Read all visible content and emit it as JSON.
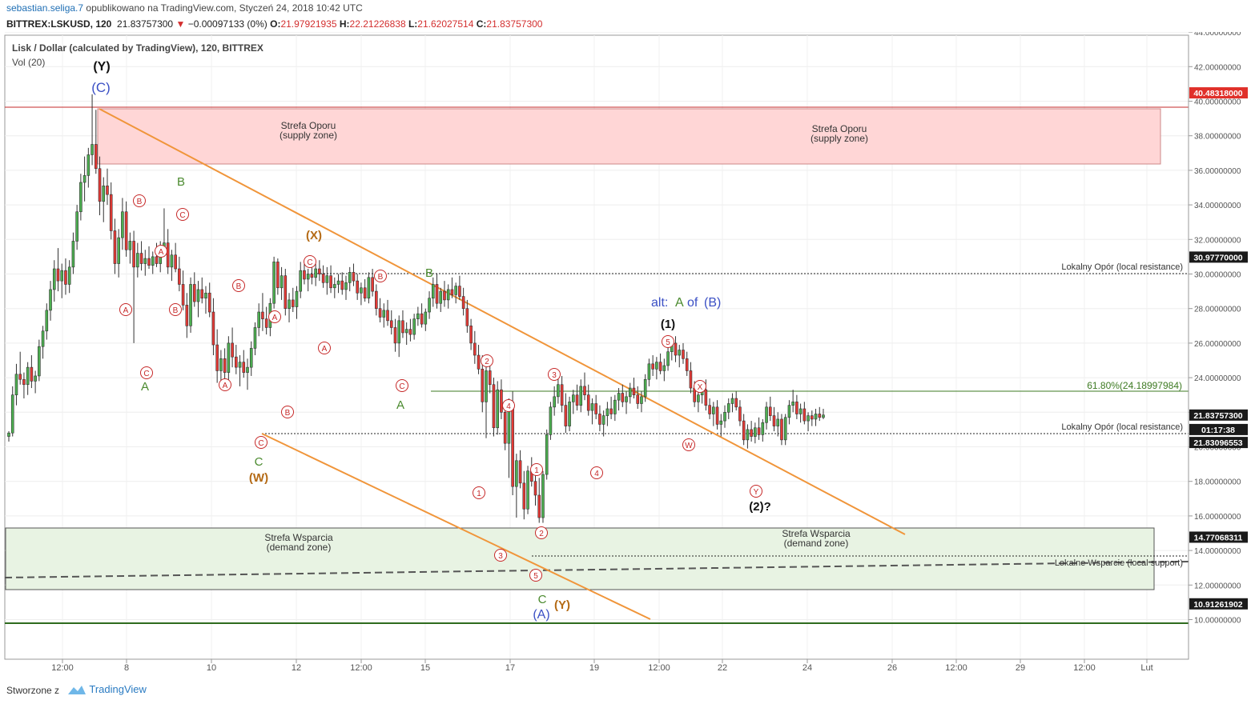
{
  "header": {
    "author": "sebastian.seliga.7",
    "published_text": "opublikowano na TradingView.com, Styczeń 24, 2018 10:42 UTC"
  },
  "info": {
    "symbol": "BITTREX:LSKUSD, 120",
    "price": "21.83757300",
    "change": "−0.00097133 (0%)",
    "open_label": "O:",
    "open": "21.97921935",
    "high_label": "H:",
    "high": "22.21226838",
    "low_label": "L:",
    "low": "21.62027514",
    "close_label": "C:",
    "close": "21.83757300",
    "down_arrow_icon": "triangle-down-icon"
  },
  "footer": {
    "made_with": "Stworzone z",
    "brand": "TradingView"
  },
  "colors": {
    "up": "#4caf50",
    "down": "#e53935",
    "wick": "#333333",
    "resistance_zone_fill": "#ffd6d6",
    "support_zone_fill": "#e8f3e3",
    "trendline": "#f0953a",
    "red_price": "#e0302a",
    "axis_tag": "#1a1a1a",
    "green_line": "#3d7a22",
    "blue_label": "#3a4fc4",
    "orange_label": "#b46a15",
    "green_label": "#4a8a2e"
  },
  "chart_data": {
    "type": "candlestick",
    "title": "Lisk / Dollar (calculated by TradingView), 120, BITTREX",
    "indicator": "Vol (20)",
    "ylim": [
      9.5,
      44.5
    ],
    "y_ticks": [
      "10.00000000",
      "12.00000000",
      "14.00000000",
      "16.00000000",
      "18.00000000",
      "20.00000000",
      "22.00000000",
      "24.00000000",
      "26.00000000",
      "28.00000000",
      "30.00000000",
      "32.00000000",
      "34.00000000",
      "36.00000000",
      "38.00000000",
      "40.00000000",
      "42.00000000",
      "44.00000000"
    ],
    "x_ticks": [
      "12:00",
      "8",
      "10",
      "12",
      "12:00",
      "15",
      "17",
      "19",
      "12:00",
      "22",
      "24",
      "26",
      "12:00",
      "29",
      "12:00",
      "Lut"
    ],
    "price_tags": [
      {
        "label": "40.48318000",
        "value": 40.48318,
        "style": "red"
      },
      {
        "label": "30.97770000",
        "value": 30.9777,
        "style": "dark"
      },
      {
        "label": "21.83757300",
        "value": 21.837573,
        "style": "dark"
      },
      {
        "label": "01:17:38",
        "value": 21.0,
        "style": "dark"
      },
      {
        "label": "21.83096553",
        "value": 20.25,
        "style": "dark"
      },
      {
        "label": "14.77068311",
        "value": 14.77068311,
        "style": "dark"
      },
      {
        "label": "10.91261902",
        "value": 10.91261902,
        "style": "dark"
      }
    ],
    "zones": [
      {
        "name": "Strefa Oporu",
        "sub": "(supply zone)",
        "top": 40.4,
        "bottom": 37.3,
        "kind": "resistance"
      },
      {
        "name": "Strefa Wsparcia",
        "sub": "(demand zone)",
        "top": 16.4,
        "bottom": 12.9,
        "kind": "support"
      }
    ],
    "levels": [
      {
        "label": "Lokalny Opór (local resistance)",
        "value": 30.9777
      },
      {
        "label": "Lokalny Opór (local resistance)",
        "value": 21.837573
      },
      {
        "label": "Lokalne Wsparcie (local support)",
        "value": 14.77068311
      },
      {
        "label": "61.80%(24.18997984)",
        "value": 24.18997984
      }
    ],
    "wave_labels": {
      "top_y": "(Y)",
      "top_c": "(C)",
      "b": "B",
      "x_paren": "(X)",
      "b2": "B",
      "a": "A",
      "a2": "A",
      "c": "C",
      "w_paren": "(W)",
      "c_final": "C",
      "a_paren": "(A)",
      "y_paren": "(Y)",
      "alt_prefix": "alt:",
      "alt_a": "A",
      "alt_of": "of",
      "alt_b": "(B)",
      "one_paren": "(1)",
      "two_paren": "(2)?",
      "circle_A": "A",
      "circle_B": "B",
      "circle_C": "C",
      "circle_W": "W",
      "circle_X": "X",
      "circle_Y": "Y",
      "n1": "1",
      "n2": "2",
      "n3": "3",
      "n4": "4",
      "n5": "5"
    },
    "candles": [
      [
        20.6,
        20.9,
        20.3,
        20.8
      ],
      [
        20.8,
        23.5,
        20.6,
        23.0
      ],
      [
        23.0,
        24.8,
        22.4,
        24.2
      ],
      [
        24.2,
        25.5,
        23.6,
        23.9
      ],
      [
        23.9,
        24.3,
        22.8,
        23.6
      ],
      [
        23.6,
        24.9,
        23.0,
        24.6
      ],
      [
        24.6,
        25.3,
        23.4,
        23.8
      ],
      [
        23.8,
        24.4,
        23.1,
        24.1
      ],
      [
        24.1,
        26.2,
        23.8,
        25.8
      ],
      [
        25.8,
        27.0,
        25.1,
        26.7
      ],
      [
        26.7,
        28.3,
        26.2,
        27.9
      ],
      [
        27.9,
        29.6,
        27.3,
        29.1
      ],
      [
        29.1,
        30.8,
        28.4,
        30.3
      ],
      [
        30.3,
        31.5,
        29.0,
        29.6
      ],
      [
        29.6,
        30.6,
        28.6,
        30.2
      ],
      [
        30.2,
        30.9,
        28.8,
        29.4
      ],
      [
        29.4,
        30.8,
        28.9,
        30.4
      ],
      [
        30.4,
        32.4,
        30.0,
        31.9
      ],
      [
        31.9,
        34.0,
        31.4,
        33.6
      ],
      [
        33.6,
        35.8,
        33.1,
        35.3
      ],
      [
        35.3,
        36.8,
        34.2,
        35.7
      ],
      [
        35.7,
        37.3,
        35.0,
        36.9
      ],
      [
        36.9,
        40.4,
        36.3,
        37.5
      ],
      [
        37.5,
        39.5,
        35.8,
        36.1
      ],
      [
        36.1,
        36.8,
        33.4,
        34.2
      ],
      [
        34.2,
        35.6,
        33.0,
        35.1
      ],
      [
        35.1,
        36.1,
        34.0,
        34.6
      ],
      [
        34.6,
        35.3,
        32.0,
        32.5
      ],
      [
        32.5,
        33.2,
        30.0,
        30.6
      ],
      [
        30.6,
        32.6,
        29.8,
        32.1
      ],
      [
        32.1,
        34.4,
        31.4,
        33.6
      ],
      [
        33.6,
        34.2,
        31.0,
        31.4
      ],
      [
        31.4,
        32.4,
        30.6,
        31.9
      ],
      [
        31.9,
        32.5,
        26.0,
        30.4
      ],
      [
        30.4,
        31.8,
        29.8,
        31.2
      ],
      [
        31.2,
        31.9,
        30.2,
        30.6
      ],
      [
        30.6,
        31.4,
        29.9,
        30.9
      ],
      [
        30.9,
        31.6,
        30.3,
        30.5
      ],
      [
        30.5,
        31.3,
        30.0,
        31.0
      ],
      [
        31.0,
        31.8,
        30.4,
        30.6
      ],
      [
        30.6,
        31.9,
        30.1,
        31.5
      ],
      [
        31.5,
        33.8,
        31.0,
        31.8
      ],
      [
        31.8,
        32.6,
        30.0,
        30.4
      ],
      [
        30.4,
        31.4,
        29.6,
        31.1
      ],
      [
        31.1,
        31.8,
        30.1,
        30.3
      ],
      [
        30.3,
        31.0,
        29.0,
        29.4
      ],
      [
        29.4,
        30.2,
        27.9,
        28.2
      ],
      [
        28.2,
        28.9,
        26.3,
        27.0
      ],
      [
        27.0,
        29.8,
        26.6,
        29.4
      ],
      [
        29.4,
        30.1,
        28.1,
        28.4
      ],
      [
        28.4,
        29.6,
        27.5,
        29.1
      ],
      [
        29.1,
        29.8,
        28.3,
        28.6
      ],
      [
        28.6,
        29.3,
        27.7,
        28.9
      ],
      [
        28.9,
        29.5,
        27.5,
        27.8
      ],
      [
        27.8,
        28.6,
        25.3,
        25.9
      ],
      [
        25.9,
        26.8,
        23.7,
        24.4
      ],
      [
        24.4,
        25.6,
        23.4,
        25.1
      ],
      [
        25.1,
        25.7,
        23.9,
        24.3
      ],
      [
        24.3,
        26.4,
        23.8,
        26.0
      ],
      [
        26.0,
        26.9,
        24.6,
        25.2
      ],
      [
        25.2,
        25.9,
        24.2,
        24.6
      ],
      [
        24.6,
        25.3,
        23.5,
        24.9
      ],
      [
        24.9,
        25.6,
        24.0,
        24.3
      ],
      [
        24.3,
        25.1,
        23.3,
        24.6
      ],
      [
        24.6,
        26.1,
        24.1,
        25.7
      ],
      [
        25.7,
        27.2,
        25.3,
        26.9
      ],
      [
        26.9,
        28.3,
        26.4,
        27.8
      ],
      [
        27.8,
        28.9,
        26.7,
        27.4
      ],
      [
        27.4,
        28.1,
        26.5,
        26.9
      ],
      [
        26.9,
        28.6,
        26.4,
        28.3
      ],
      [
        28.3,
        31.0,
        28.0,
        30.7
      ],
      [
        30.7,
        30.9,
        28.8,
        29.2
      ],
      [
        29.2,
        30.4,
        28.5,
        29.9
      ],
      [
        29.9,
        30.3,
        27.6,
        28.0
      ],
      [
        28.0,
        28.9,
        27.2,
        28.5
      ],
      [
        28.5,
        29.2,
        27.8,
        28.1
      ],
      [
        28.1,
        29.3,
        27.4,
        29.0
      ],
      [
        29.0,
        30.7,
        28.6,
        30.2
      ],
      [
        30.2,
        30.6,
        29.4,
        29.7
      ],
      [
        29.7,
        30.3,
        29.0,
        30.0
      ],
      [
        30.0,
        30.7,
        29.4,
        29.8
      ],
      [
        29.8,
        30.6,
        29.3,
        30.3
      ],
      [
        30.3,
        30.8,
        29.6,
        30.0
      ],
      [
        30.0,
        30.5,
        29.2,
        29.5
      ],
      [
        29.5,
        30.4,
        28.8,
        29.9
      ],
      [
        29.9,
        30.5,
        28.9,
        29.2
      ],
      [
        29.2,
        29.8,
        28.6,
        29.4
      ],
      [
        29.4,
        30.0,
        28.9,
        29.6
      ],
      [
        29.6,
        30.1,
        28.8,
        29.1
      ],
      [
        29.1,
        29.9,
        28.5,
        29.5
      ],
      [
        29.5,
        30.4,
        29.0,
        30.1
      ],
      [
        30.1,
        30.6,
        29.3,
        29.6
      ],
      [
        29.6,
        30.0,
        28.5,
        28.9
      ],
      [
        28.9,
        29.5,
        28.2,
        29.2
      ],
      [
        29.2,
        29.7,
        28.4,
        28.6
      ],
      [
        28.6,
        30.1,
        28.3,
        29.8
      ],
      [
        29.8,
        30.3,
        28.7,
        29.0
      ],
      [
        29.0,
        29.4,
        27.6,
        28.0
      ],
      [
        28.0,
        28.6,
        27.2,
        27.5
      ],
      [
        27.5,
        28.3,
        26.9,
        27.9
      ],
      [
        27.9,
        28.5,
        27.0,
        27.3
      ],
      [
        27.3,
        27.9,
        26.5,
        26.9
      ],
      [
        26.9,
        27.4,
        25.5,
        26.0
      ],
      [
        26.0,
        27.6,
        25.2,
        27.3
      ],
      [
        27.3,
        27.9,
        26.3,
        26.6
      ],
      [
        26.6,
        27.2,
        25.9,
        26.8
      ],
      [
        26.8,
        27.4,
        26.1,
        26.5
      ],
      [
        26.5,
        27.7,
        26.2,
        27.4
      ],
      [
        27.4,
        28.1,
        27.0,
        27.7
      ],
      [
        27.7,
        28.3,
        26.9,
        27.1
      ],
      [
        27.1,
        28.0,
        26.7,
        27.8
      ],
      [
        27.8,
        29.0,
        27.4,
        28.6
      ],
      [
        28.6,
        29.8,
        28.1,
        29.4
      ],
      [
        29.4,
        30.0,
        28.0,
        28.3
      ],
      [
        28.3,
        29.2,
        27.8,
        29.0
      ],
      [
        29.0,
        29.6,
        28.1,
        28.5
      ],
      [
        28.5,
        29.4,
        28.0,
        29.1
      ],
      [
        29.1,
        29.8,
        28.6,
        28.8
      ],
      [
        28.8,
        29.5,
        28.3,
        29.3
      ],
      [
        29.3,
        29.9,
        28.5,
        28.7
      ],
      [
        28.7,
        29.2,
        27.6,
        28.0
      ],
      [
        28.0,
        28.5,
        26.6,
        27.0
      ],
      [
        27.0,
        27.4,
        25.6,
        26.0
      ],
      [
        26.0,
        26.7,
        24.8,
        25.3
      ],
      [
        25.3,
        25.9,
        24.2,
        24.5
      ],
      [
        24.5,
        25.3,
        22.0,
        22.6
      ],
      [
        22.6,
        24.8,
        20.5,
        24.4
      ],
      [
        24.4,
        24.9,
        23.1,
        23.6
      ],
      [
        23.6,
        24.0,
        20.6,
        21.1
      ],
      [
        21.1,
        23.8,
        20.7,
        23.3
      ],
      [
        23.3,
        23.9,
        21.6,
        22.0
      ],
      [
        22.0,
        22.5,
        19.8,
        20.2
      ],
      [
        20.2,
        22.8,
        18.2,
        22.6
      ],
      [
        22.6,
        23.2,
        17.2,
        17.7
      ],
      [
        17.7,
        19.6,
        15.9,
        19.2
      ],
      [
        19.2,
        19.8,
        17.6,
        17.9
      ],
      [
        17.9,
        18.6,
        15.8,
        16.4
      ],
      [
        16.4,
        18.9,
        16.1,
        18.6
      ],
      [
        18.6,
        19.4,
        17.7,
        18.0
      ],
      [
        18.0,
        19.0,
        16.6,
        17.2
      ],
      [
        17.2,
        18.2,
        15.6,
        15.9
      ],
      [
        15.9,
        18.6,
        15.6,
        18.4
      ],
      [
        18.4,
        21.0,
        18.1,
        20.7
      ],
      [
        20.7,
        22.6,
        20.4,
        22.3
      ],
      [
        22.3,
        23.5,
        21.8,
        22.9
      ],
      [
        22.9,
        24.2,
        22.5,
        23.6
      ],
      [
        23.6,
        24.1,
        22.0,
        22.4
      ],
      [
        22.4,
        23.1,
        20.8,
        21.2
      ],
      [
        21.2,
        22.9,
        20.9,
        22.6
      ],
      [
        22.6,
        23.3,
        21.9,
        23.0
      ],
      [
        23.0,
        23.6,
        22.1,
        22.4
      ],
      [
        22.4,
        23.9,
        22.0,
        23.5
      ],
      [
        23.5,
        24.3,
        22.7,
        23.0
      ],
      [
        23.0,
        23.6,
        21.8,
        22.1
      ],
      [
        22.1,
        22.8,
        21.3,
        22.5
      ],
      [
        22.5,
        23.0,
        21.6,
        21.9
      ],
      [
        21.9,
        22.4,
        20.9,
        21.3
      ],
      [
        21.3,
        22.1,
        20.6,
        21.8
      ],
      [
        21.8,
        22.6,
        21.2,
        22.2
      ],
      [
        22.2,
        22.9,
        21.6,
        21.9
      ],
      [
        21.9,
        23.0,
        21.5,
        22.7
      ],
      [
        22.7,
        23.4,
        22.1,
        23.1
      ],
      [
        23.1,
        23.6,
        22.3,
        22.6
      ],
      [
        22.6,
        23.2,
        21.9,
        22.9
      ],
      [
        22.9,
        23.7,
        22.5,
        23.4
      ],
      [
        23.4,
        24.0,
        22.8,
        23.0
      ],
      [
        23.0,
        23.5,
        22.2,
        22.5
      ],
      [
        22.5,
        23.2,
        22.0,
        22.9
      ],
      [
        22.9,
        24.2,
        22.6,
        23.9
      ],
      [
        23.9,
        25.1,
        23.5,
        24.8
      ],
      [
        24.8,
        25.3,
        24.1,
        24.5
      ],
      [
        24.5,
        25.2,
        23.9,
        24.9
      ],
      [
        24.9,
        25.4,
        24.2,
        24.4
      ],
      [
        24.4,
        25.1,
        23.8,
        24.7
      ],
      [
        24.7,
        25.8,
        24.4,
        25.5
      ],
      [
        25.5,
        26.3,
        25.0,
        26.0
      ],
      [
        26.0,
        26.4,
        24.9,
        25.3
      ],
      [
        25.3,
        25.9,
        24.6,
        25.6
      ],
      [
        25.6,
        26.0,
        24.8,
        25.1
      ],
      [
        25.1,
        25.5,
        24.1,
        24.4
      ],
      [
        24.4,
        24.9,
        23.1,
        23.4
      ],
      [
        23.4,
        23.8,
        22.3,
        22.6
      ],
      [
        22.6,
        23.3,
        22.0,
        23.0
      ],
      [
        23.0,
        23.7,
        22.5,
        23.3
      ],
      [
        23.3,
        23.9,
        22.1,
        22.4
      ],
      [
        22.4,
        22.8,
        21.6,
        21.9
      ],
      [
        21.9,
        22.6,
        21.2,
        22.3
      ],
      [
        22.3,
        22.7,
        21.0,
        21.3
      ],
      [
        21.3,
        21.9,
        20.6,
        21.5
      ],
      [
        21.5,
        22.4,
        21.1,
        22.0
      ],
      [
        22.0,
        22.8,
        21.6,
        22.5
      ],
      [
        22.5,
        23.1,
        22.0,
        22.8
      ],
      [
        22.8,
        23.2,
        22.1,
        22.3
      ],
      [
        22.3,
        22.7,
        21.2,
        21.5
      ],
      [
        21.5,
        21.9,
        20.1,
        20.4
      ],
      [
        20.4,
        21.3,
        19.9,
        21.0
      ],
      [
        21.0,
        21.5,
        20.3,
        20.6
      ],
      [
        20.6,
        21.4,
        20.2,
        21.1
      ],
      [
        21.1,
        21.7,
        20.4,
        20.7
      ],
      [
        20.7,
        21.6,
        20.3,
        21.4
      ],
      [
        21.4,
        22.6,
        21.0,
        22.3
      ],
      [
        22.3,
        22.9,
        21.5,
        21.8
      ],
      [
        21.8,
        22.3,
        20.9,
        21.2
      ],
      [
        21.2,
        22.0,
        20.6,
        21.6
      ],
      [
        21.6,
        21.9,
        20.1,
        20.4
      ],
      [
        20.4,
        21.9,
        20.1,
        21.7
      ],
      [
        21.7,
        22.7,
        21.3,
        22.4
      ],
      [
        22.4,
        23.3,
        22.0,
        22.6
      ],
      [
        22.6,
        23.0,
        21.6,
        21.9
      ],
      [
        21.9,
        22.5,
        21.4,
        22.2
      ],
      [
        22.2,
        22.6,
        21.3,
        21.5
      ],
      [
        21.5,
        22.0,
        20.9,
        21.8
      ],
      [
        21.8,
        22.1,
        21.2,
        21.6
      ],
      [
        21.6,
        22.2,
        21.2,
        21.9
      ],
      [
        21.9,
        22.3,
        21.5,
        21.7
      ],
      [
        21.7,
        22.2,
        21.6,
        21.84
      ]
    ]
  }
}
